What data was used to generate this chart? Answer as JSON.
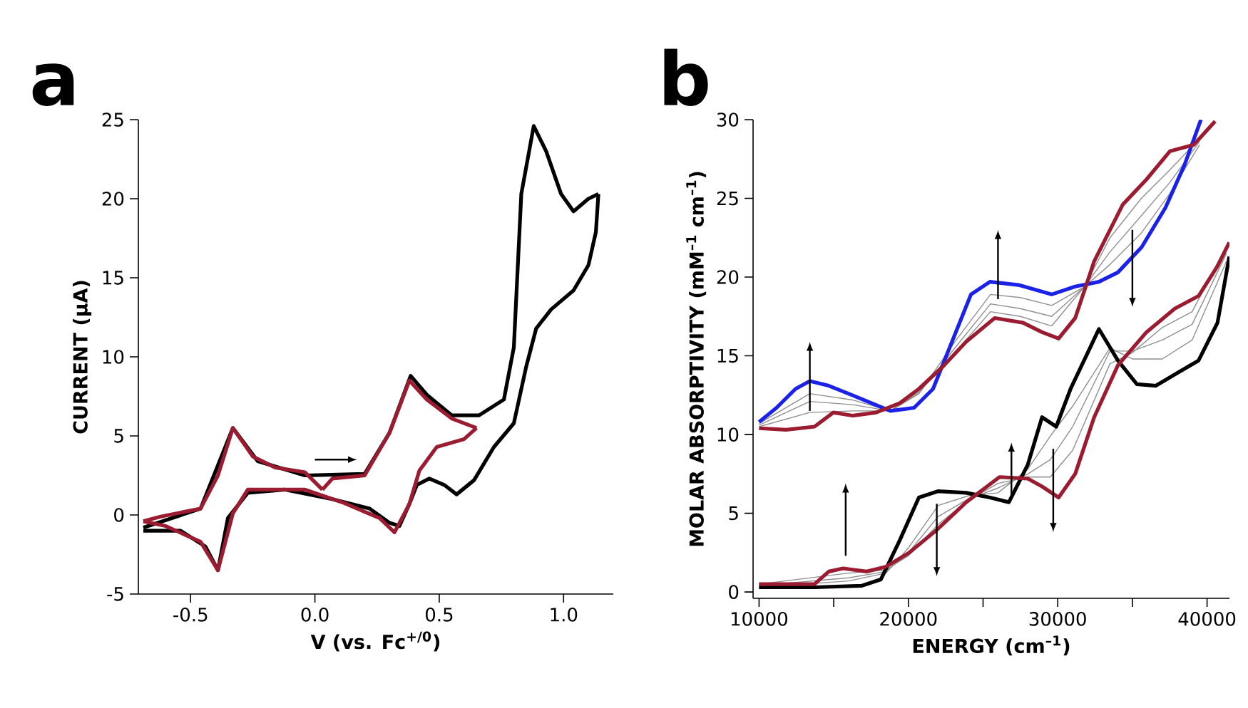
{
  "chart_data": [
    {
      "type": "line",
      "title": "a",
      "xlabel": "V (vs. Fc$^{+/0}$)",
      "ylabel": "CURRENT (µA)",
      "xlim": [
        -0.71,
        1.2
      ],
      "ylim": [
        -5,
        25
      ],
      "xticks": [
        -0.5,
        {
          "value": 0,
          "label": "0.0"
        },
        0.5,
        {
          "value": 1,
          "label": "1.0"
        }
      ],
      "yticks": [
        -5,
        0,
        5,
        10,
        15,
        20,
        25
      ],
      "grid": false,
      "series": [
        {
          "color": "#000000",
          "x": [
            -0.69,
            -0.46,
            -0.33,
            -0.23,
            -0.04,
            0.2,
            0.3,
            0.385,
            0.45,
            0.55,
            0.66,
            0.76,
            0.8,
            0.83,
            0.88,
            0.93,
            0.99,
            1.04,
            1.1,
            1.14
          ],
          "values": [
            -0.8,
            0.4,
            5.5,
            3.4,
            2.5,
            2.6,
            5.2,
            8.8,
            7.6,
            6.3,
            6.3,
            7.3,
            10.6,
            20.3,
            24.6,
            23,
            20.3,
            19.2,
            20,
            20.3
          ]
        },
        {
          "color": "#000000",
          "x": [
            1.14,
            1.13,
            1.1,
            1.04,
            0.95,
            0.89,
            0.85,
            0.8,
            0.72,
            0.64,
            0.57,
            0.52,
            0.46,
            0.41,
            0.38,
            0.34,
            0.3,
            0.22,
            0.07,
            -0.12,
            -0.27,
            -0.35,
            -0.39,
            -0.44,
            -0.54,
            -0.69
          ],
          "values": [
            20.3,
            17.9,
            15.8,
            14.2,
            13,
            11.8,
            9.4,
            5.8,
            4.3,
            2.2,
            1.3,
            1.9,
            2.3,
            1.9,
            0.7,
            -0.7,
            -0.5,
            0.4,
            1.0,
            1.6,
            1.4,
            -0.2,
            -3.5,
            -2.0,
            -1.0,
            -1.0
          ]
        },
        {
          "color": "#9b1b30",
          "x": [
            0.03,
            0.07,
            0.2,
            0.3,
            0.38,
            0.45,
            0.55,
            0.65
          ],
          "values": [
            1.6,
            2.3,
            2.5,
            5.2,
            8.5,
            7.3,
            6.1,
            5.5
          ]
        },
        {
          "color": "#9b1b30",
          "x": [
            0.65,
            0.6,
            0.49,
            0.42,
            0.38,
            0.32,
            0.26,
            0.11,
            -0.04,
            -0.27,
            -0.33,
            -0.39,
            -0.46,
            -0.6,
            -0.69
          ],
          "values": [
            5.5,
            4.8,
            4.3,
            2.8,
            0.7,
            -1.1,
            -0.2,
            0.8,
            1.6,
            1.6,
            0.1,
            -3.5,
            -1.7,
            -0.7,
            -0.4
          ]
        },
        {
          "color": "#9b1b30",
          "x": [
            -0.69,
            -0.62,
            -0.46,
            -0.39,
            -0.33,
            -0.25,
            -0.16,
            -0.04,
            0.03
          ],
          "values": [
            -0.4,
            -0.1,
            0.4,
            2.5,
            5.5,
            3.7,
            3.0,
            2.7,
            1.6
          ]
        }
      ]
    },
    {
      "type": "line",
      "title": "b",
      "xlabel": "ENERGY (cm$^{–1}$)",
      "ylabel": "MOLAR ABSORPTIVITY (mM$^{–1}$ cm$^{–1}$)",
      "xlim": [
        9600,
        41500
      ],
      "ylim": [
        -0.4,
        30
      ],
      "xticks": [
        10000,
        {
          "value": 15000,
          "label": null
        },
        20000,
        {
          "value": 25000,
          "label": null
        },
        30000,
        {
          "value": 35000,
          "label": null
        },
        40000
      ],
      "yticks": [
        0,
        5,
        10,
        15,
        20,
        25,
        30
      ],
      "grid": false,
      "series": [
        {
          "color": "#909090",
          "x": [
            10000,
            13400,
            16250,
            18790,
            20700,
            23200,
            25500,
            27500,
            29600,
            31800,
            33500,
            35600,
            37500,
            39500
          ],
          "values": [
            10.7,
            12.6,
            12.2,
            11.5,
            12.6,
            16.0,
            18.9,
            18.7,
            18.2,
            19.4,
            20.8,
            22.8,
            25.3,
            28.4
          ]
        },
        {
          "color": "#909090",
          "x": [
            10000,
            13400,
            16250,
            18790,
            20700,
            23200,
            25500,
            27500,
            29600,
            31800,
            33500,
            35600,
            37500,
            39500
          ],
          "values": [
            10.6,
            12.1,
            11.9,
            11.5,
            12.6,
            15.6,
            18.3,
            18.0,
            17.5,
            19.4,
            21.6,
            23.9,
            26.0,
            28.6
          ]
        },
        {
          "color": "#909090",
          "x": [
            10000,
            13400,
            16250,
            18790,
            20700,
            23200,
            25500,
            27500,
            29600,
            31800,
            33500,
            35600,
            37500,
            39500
          ],
          "values": [
            10.5,
            11.4,
            11.5,
            11.5,
            12.7,
            15.3,
            17.8,
            17.5,
            16.9,
            19.4,
            22.5,
            25.0,
            26.8,
            28.8
          ]
        },
        {
          "color": "#1a22e8",
          "x": [
            10000,
            11170,
            12440,
            13400,
            14670,
            16250,
            17520,
            18790,
            20380,
            21650,
            22920,
            24190,
            25460,
            27370,
            29590,
            31170,
            32760,
            34030,
            35620,
            37210,
            38480,
            39590
          ],
          "values": [
            10.8,
            11.7,
            12.9,
            13.4,
            13.1,
            12.5,
            12.0,
            11.5,
            11.7,
            12.9,
            15.9,
            18.9,
            19.7,
            19.5,
            18.9,
            19.4,
            19.7,
            20.3,
            21.9,
            24.4,
            27.1,
            30.0
          ]
        },
        {
          "color": "#9b1b30",
          "x": [
            10000,
            11810,
            13710,
            14980,
            16250,
            17840,
            19430,
            20700,
            22290,
            23870,
            25780,
            27680,
            28950,
            30060,
            31170,
            32440,
            34350,
            35940,
            37520,
            39110,
            40540
          ],
          "values": [
            10.4,
            10.3,
            10.5,
            11.4,
            11.2,
            11.4,
            12.0,
            12.9,
            14.3,
            15.9,
            17.4,
            17.1,
            16.5,
            16.1,
            17.4,
            21.0,
            24.6,
            26.2,
            28.0,
            28.4,
            29.9
          ]
        },
        {
          "color": "#909090",
          "x": [
            10000,
            16000,
            18500,
            20000,
            22000,
            24000,
            26000,
            28000,
            29500,
            31000,
            33500,
            35000,
            37000,
            39000,
            41300
          ],
          "values": [
            0.3,
            0.7,
            1.2,
            2.8,
            5.5,
            6.1,
            6.3,
            7.8,
            9.9,
            11.8,
            15.5,
            14.8,
            14.8,
            16.0,
            21.0
          ]
        },
        {
          "color": "#909090",
          "x": [
            10000,
            16000,
            18500,
            20000,
            22000,
            24000,
            26000,
            28000,
            29500,
            31000,
            33500,
            35000,
            37000,
            39000,
            41300
          ],
          "values": [
            0.4,
            0.9,
            1.3,
            2.5,
            4.8,
            5.9,
            6.6,
            7.5,
            8.4,
            10.5,
            15.3,
            15.3,
            16.0,
            17.0,
            21.5
          ]
        },
        {
          "color": "#909090",
          "x": [
            10000,
            16000,
            18500,
            20000,
            22000,
            24000,
            26000,
            28000,
            29500,
            31000,
            33500,
            35000,
            37000,
            39000,
            41300
          ],
          "values": [
            0.5,
            1.2,
            1.4,
            2.3,
            4.3,
            5.8,
            6.9,
            7.3,
            7.3,
            9.0,
            14.5,
            15.2,
            16.8,
            17.8,
            22.0
          ]
        },
        {
          "color": "#000000",
          "x": [
            10000,
            13710,
            16890,
            18160,
            19430,
            20700,
            21970,
            23870,
            25460,
            26730,
            28000,
            28950,
            29900,
            30860,
            32760,
            34030,
            35300,
            36570,
            38160,
            39430,
            40700,
            41490
          ],
          "values": [
            0.3,
            0.3,
            0.4,
            0.8,
            3.3,
            6.0,
            6.4,
            6.3,
            6.0,
            5.7,
            8.1,
            11.1,
            10.5,
            12.9,
            16.7,
            14.7,
            13.2,
            13.1,
            14.0,
            14.7,
            17.1,
            21.3
          ]
        },
        {
          "color": "#9b1b30",
          "x": [
            10000,
            13710,
            14670,
            15620,
            17210,
            18480,
            20060,
            21970,
            23870,
            26100,
            28000,
            28950,
            30060,
            31170,
            32440,
            34030,
            35940,
            37840,
            39430,
            40700,
            41490
          ],
          "values": [
            0.5,
            0.5,
            1.3,
            1.5,
            1.3,
            1.6,
            2.5,
            4.0,
            5.7,
            7.3,
            7.2,
            6.7,
            6.0,
            7.5,
            11.1,
            14.4,
            16.5,
            18.0,
            18.8,
            20.7,
            22.2
          ]
        }
      ]
    }
  ]
}
